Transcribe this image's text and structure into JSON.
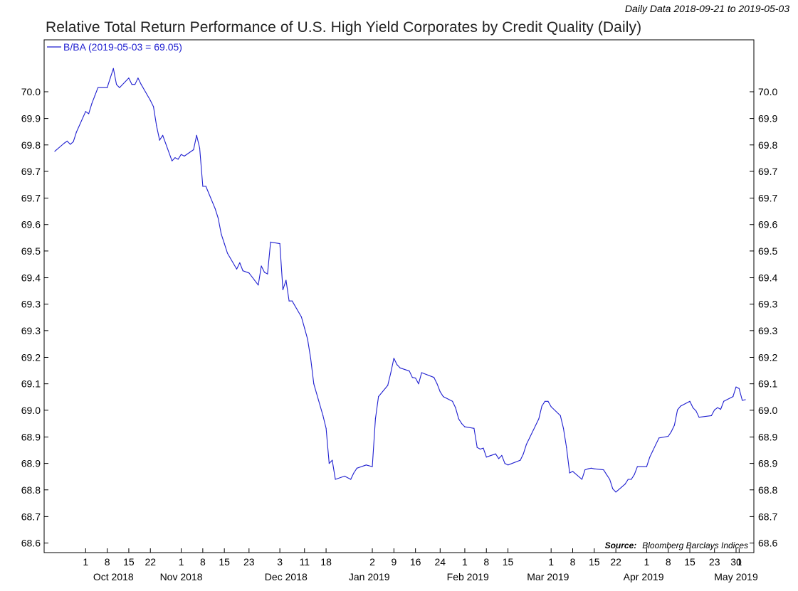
{
  "header": {
    "date_range": "Daily Data 2018-09-21 to 2019-05-03",
    "title": "Relative Total Return Performance of U.S. High Yield Corporates by Credit Quality (Daily)"
  },
  "source": {
    "label": "Source:",
    "text": "Bloomberg Barclays Indices"
  },
  "colors": {
    "series": "#1f1fd0",
    "axis": "#000000",
    "text": "#000000"
  },
  "chart_data": {
    "type": "line",
    "title": "Relative Total Return Performance of U.S. High Yield Corporates by Credit Quality (Daily)",
    "xlabel": "",
    "ylabel": "",
    "grid": false,
    "legend_position": "top-left",
    "x_range": [
      "2018-09-21",
      "2019-05-03"
    ],
    "ylim": [
      68.57,
      70.18
    ],
    "y_ticks": [
      {
        "label": "68.6",
        "value": 68.6
      },
      {
        "label": "68.7",
        "value": 68.683
      },
      {
        "label": "68.8",
        "value": 68.767
      },
      {
        "label": "68.9",
        "value": 68.85
      },
      {
        "label": "68.9",
        "value": 68.933
      },
      {
        "label": "69.0",
        "value": 69.017
      },
      {
        "label": "69.1",
        "value": 69.1
      },
      {
        "label": "69.2",
        "value": 69.183
      },
      {
        "label": "69.3",
        "value": 69.267
      },
      {
        "label": "69.3",
        "value": 69.35
      },
      {
        "label": "69.4",
        "value": 69.433
      },
      {
        "label": "69.5",
        "value": 69.517
      },
      {
        "label": "69.6",
        "value": 69.6
      },
      {
        "label": "69.7",
        "value": 69.683
      },
      {
        "label": "69.7",
        "value": 69.767
      },
      {
        "label": "69.8",
        "value": 69.85
      },
      {
        "label": "69.9",
        "value": 69.933
      },
      {
        "label": "70.0",
        "value": 70.017
      }
    ],
    "x_ticks": [
      {
        "label": "1",
        "date": "2018-10-01"
      },
      {
        "label": "8",
        "date": "2018-10-08"
      },
      {
        "label": "15",
        "date": "2018-10-15"
      },
      {
        "label": "22",
        "date": "2018-10-22"
      },
      {
        "label": "1",
        "date": "2018-11-01"
      },
      {
        "label": "8",
        "date": "2018-11-08"
      },
      {
        "label": "15",
        "date": "2018-11-15"
      },
      {
        "label": "23",
        "date": "2018-11-23"
      },
      {
        "label": "3",
        "date": "2018-12-03"
      },
      {
        "label": "11",
        "date": "2018-12-11"
      },
      {
        "label": "18",
        "date": "2018-12-18"
      },
      {
        "label": "2",
        "date": "2019-01-02"
      },
      {
        "label": "9",
        "date": "2019-01-09"
      },
      {
        "label": "16",
        "date": "2019-01-16"
      },
      {
        "label": "24",
        "date": "2019-01-24"
      },
      {
        "label": "1",
        "date": "2019-02-01"
      },
      {
        "label": "8",
        "date": "2019-02-08"
      },
      {
        "label": "15",
        "date": "2019-02-15"
      },
      {
        "label": "1",
        "date": "2019-03-01"
      },
      {
        "label": "8",
        "date": "2019-03-08"
      },
      {
        "label": "15",
        "date": "2019-03-15"
      },
      {
        "label": "22",
        "date": "2019-03-22"
      },
      {
        "label": "1",
        "date": "2019-04-01"
      },
      {
        "label": "8",
        "date": "2019-04-08"
      },
      {
        "label": "15",
        "date": "2019-04-15"
      },
      {
        "label": "23",
        "date": "2019-04-23"
      },
      {
        "label": "30",
        "date": "2019-04-30"
      },
      {
        "label": "1",
        "date": "2019-05-01"
      }
    ],
    "month_labels": [
      {
        "label": "Oct 2018",
        "date": "2018-10-10"
      },
      {
        "label": "Nov 2018",
        "date": "2018-11-01"
      },
      {
        "label": "Dec 2018",
        "date": "2018-12-05"
      },
      {
        "label": "Jan 2019",
        "date": "2019-01-01"
      },
      {
        "label": "Feb 2019",
        "date": "2019-02-02"
      },
      {
        "label": "Mar 2019",
        "date": "2019-02-28"
      },
      {
        "label": "Apr 2019",
        "date": "2019-03-31"
      },
      {
        "label": "May 2019",
        "date": "2019-04-30"
      }
    ],
    "series": [
      {
        "name": "B/BA (2019-05-03 = 69.05)",
        "points": [
          [
            "2018-09-21",
            69.83
          ],
          [
            "2018-09-24",
            69.855
          ],
          [
            "2018-09-25",
            69.862
          ],
          [
            "2018-09-26",
            69.852
          ],
          [
            "2018-09-27",
            69.86
          ],
          [
            "2018-09-28",
            69.89
          ],
          [
            "2018-10-01",
            69.955
          ],
          [
            "2018-10-02",
            69.948
          ],
          [
            "2018-10-03",
            69.98
          ],
          [
            "2018-10-04",
            70.005
          ],
          [
            "2018-10-05",
            70.03
          ],
          [
            "2018-10-08",
            70.03
          ],
          [
            "2018-10-09",
            70.06
          ],
          [
            "2018-10-10",
            70.09
          ],
          [
            "2018-10-11",
            70.04
          ],
          [
            "2018-10-12",
            70.03
          ],
          [
            "2018-10-15",
            70.06
          ],
          [
            "2018-10-16",
            70.04
          ],
          [
            "2018-10-17",
            70.04
          ],
          [
            "2018-10-18",
            70.06
          ],
          [
            "2018-10-19",
            70.04
          ],
          [
            "2018-10-22",
            69.99
          ],
          [
            "2018-10-23",
            69.97
          ],
          [
            "2018-10-24",
            69.91
          ],
          [
            "2018-10-25",
            69.865
          ],
          [
            "2018-10-26",
            69.88
          ],
          [
            "2018-10-29",
            69.8
          ],
          [
            "2018-10-30",
            69.81
          ],
          [
            "2018-10-31",
            69.805
          ],
          [
            "2018-11-01",
            69.82
          ],
          [
            "2018-11-02",
            69.815
          ],
          [
            "2018-11-05",
            69.835
          ],
          [
            "2018-11-06",
            69.88
          ],
          [
            "2018-11-07",
            69.84
          ],
          [
            "2018-11-08",
            69.72
          ],
          [
            "2018-11-09",
            69.72
          ],
          [
            "2018-11-12",
            69.65
          ],
          [
            "2018-11-13",
            69.62
          ],
          [
            "2018-11-14",
            69.57
          ],
          [
            "2018-11-15",
            69.54
          ],
          [
            "2018-11-16",
            69.51
          ],
          [
            "2018-11-19",
            69.46
          ],
          [
            "2018-11-20",
            69.48
          ],
          [
            "2018-11-21",
            69.455
          ],
          [
            "2018-11-23",
            69.448
          ],
          [
            "2018-11-26",
            69.41
          ],
          [
            "2018-11-27",
            69.47
          ],
          [
            "2018-11-28",
            69.45
          ],
          [
            "2018-11-29",
            69.445
          ],
          [
            "2018-11-30",
            69.545
          ],
          [
            "2018-12-03",
            69.54
          ],
          [
            "2018-12-04",
            69.395
          ],
          [
            "2018-12-05",
            69.425
          ],
          [
            "2018-12-06",
            69.36
          ],
          [
            "2018-12-07",
            69.36
          ],
          [
            "2018-12-10",
            69.31
          ],
          [
            "2018-12-11",
            69.275
          ],
          [
            "2018-12-12",
            69.24
          ],
          [
            "2018-12-13",
            69.18
          ],
          [
            "2018-12-14",
            69.1
          ],
          [
            "2018-12-17",
            69.0
          ],
          [
            "2018-12-18",
            68.96
          ],
          [
            "2018-12-19",
            68.85
          ],
          [
            "2018-12-20",
            68.86
          ],
          [
            "2018-12-21",
            68.8
          ],
          [
            "2018-12-24",
            68.81
          ],
          [
            "2018-12-26",
            68.8
          ],
          [
            "2018-12-27",
            68.82
          ],
          [
            "2018-12-28",
            68.835
          ],
          [
            "2018-12-31",
            68.845
          ],
          [
            "2019-01-02",
            68.84
          ],
          [
            "2019-01-03",
            68.99
          ],
          [
            "2019-01-04",
            69.06
          ],
          [
            "2019-01-07",
            69.095
          ],
          [
            "2019-01-08",
            69.135
          ],
          [
            "2019-01-09",
            69.18
          ],
          [
            "2019-01-10",
            69.16
          ],
          [
            "2019-01-11",
            69.15
          ],
          [
            "2019-01-14",
            69.14
          ],
          [
            "2019-01-15",
            69.12
          ],
          [
            "2019-01-16",
            69.118
          ],
          [
            "2019-01-17",
            69.1
          ],
          [
            "2019-01-18",
            69.135
          ],
          [
            "2019-01-22",
            69.12
          ],
          [
            "2019-01-23",
            69.1
          ],
          [
            "2019-01-24",
            69.075
          ],
          [
            "2019-01-25",
            69.06
          ],
          [
            "2019-01-28",
            69.045
          ],
          [
            "2019-01-29",
            69.025
          ],
          [
            "2019-01-30",
            68.99
          ],
          [
            "2019-01-31",
            68.975
          ],
          [
            "2019-02-01",
            68.965
          ],
          [
            "2019-02-04",
            68.96
          ],
          [
            "2019-02-05",
            68.9
          ],
          [
            "2019-02-06",
            68.895
          ],
          [
            "2019-02-07",
            68.898
          ],
          [
            "2019-02-08",
            68.87
          ],
          [
            "2019-02-11",
            68.88
          ],
          [
            "2019-02-12",
            68.865
          ],
          [
            "2019-02-13",
            68.875
          ],
          [
            "2019-02-14",
            68.85
          ],
          [
            "2019-02-15",
            68.845
          ],
          [
            "2019-02-19",
            68.86
          ],
          [
            "2019-02-20",
            68.88
          ],
          [
            "2019-02-21",
            68.91
          ],
          [
            "2019-02-22",
            68.93
          ],
          [
            "2019-02-25",
            68.99
          ],
          [
            "2019-02-26",
            69.03
          ],
          [
            "2019-02-27",
            69.045
          ],
          [
            "2019-02-28",
            69.045
          ],
          [
            "2019-03-01",
            69.028
          ],
          [
            "2019-03-04",
            69.0
          ],
          [
            "2019-03-05",
            68.96
          ],
          [
            "2019-03-06",
            68.9
          ],
          [
            "2019-03-07",
            68.82
          ],
          [
            "2019-03-08",
            68.825
          ],
          [
            "2019-03-11",
            68.8
          ],
          [
            "2019-03-12",
            68.83
          ],
          [
            "2019-03-13",
            68.833
          ],
          [
            "2019-03-14",
            68.835
          ],
          [
            "2019-03-15",
            68.833
          ],
          [
            "2019-03-18",
            68.83
          ],
          [
            "2019-03-19",
            68.815
          ],
          [
            "2019-03-20",
            68.8
          ],
          [
            "2019-03-21",
            68.77
          ],
          [
            "2019-03-22",
            68.76
          ],
          [
            "2019-03-25",
            68.785
          ],
          [
            "2019-03-26",
            68.8
          ],
          [
            "2019-03-27",
            68.8
          ],
          [
            "2019-03-28",
            68.815
          ],
          [
            "2019-03-29",
            68.84
          ],
          [
            "2019-04-01",
            68.84
          ],
          [
            "2019-04-02",
            68.87
          ],
          [
            "2019-04-03",
            68.89
          ],
          [
            "2019-04-04",
            68.91
          ],
          [
            "2019-04-05",
            68.93
          ],
          [
            "2019-04-08",
            68.935
          ],
          [
            "2019-04-09",
            68.95
          ],
          [
            "2019-04-10",
            68.97
          ],
          [
            "2019-04-11",
            69.018
          ],
          [
            "2019-04-12",
            69.03
          ],
          [
            "2019-04-15",
            69.045
          ],
          [
            "2019-04-16",
            69.025
          ],
          [
            "2019-04-17",
            69.015
          ],
          [
            "2019-04-18",
            68.995
          ],
          [
            "2019-04-22",
            69.0
          ],
          [
            "2019-04-23",
            69.018
          ],
          [
            "2019-04-24",
            69.025
          ],
          [
            "2019-04-25",
            69.02
          ],
          [
            "2019-04-26",
            69.045
          ],
          [
            "2019-04-29",
            69.06
          ],
          [
            "2019-04-30",
            69.09
          ],
          [
            "2019-05-01",
            69.085
          ],
          [
            "2019-05-02",
            69.048
          ],
          [
            "2019-05-03",
            69.05
          ]
        ]
      }
    ]
  }
}
